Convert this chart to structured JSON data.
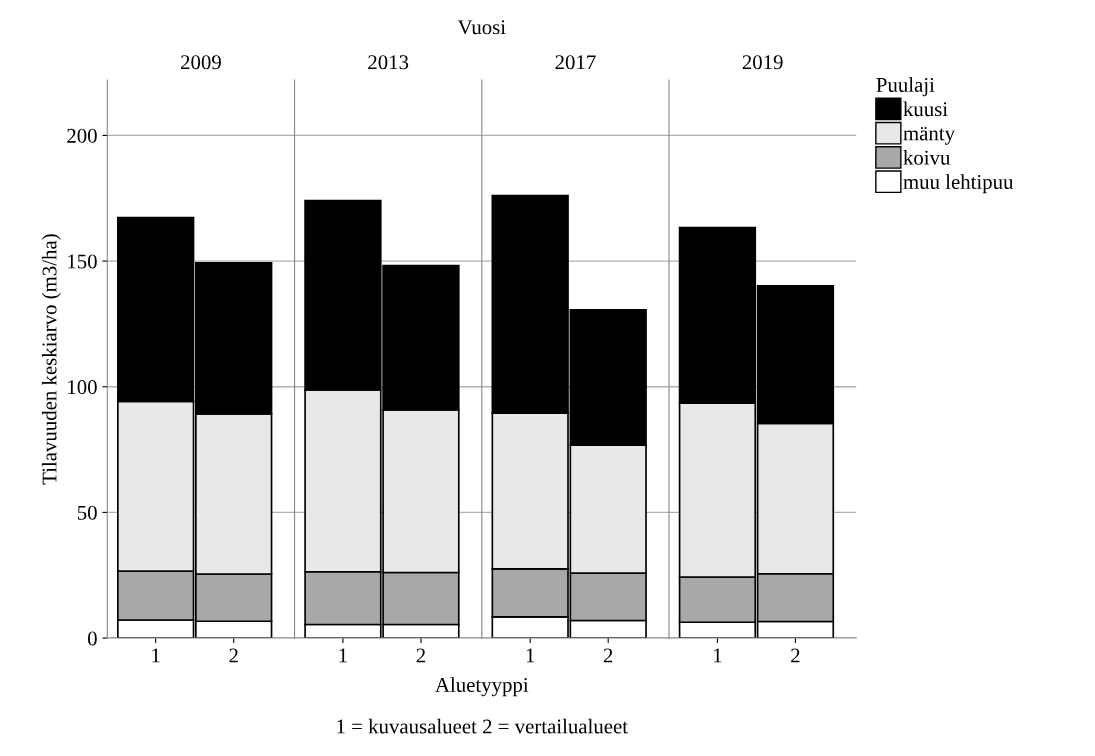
{
  "chart_data": [
    {
      "type": "bar",
      "title": "2009",
      "ylabel": "Tilavuuden keskiarvo (m3/ha)",
      "annotations": [
        "Vuosi",
        "Aluetyyppi",
        "1 = kuvausalueet 2 = vertailualueet"
      ],
      "categories": [
        "1",
        "2"
      ],
      "stacked": true,
      "ylim": [
        0,
        222
      ],
      "yticks": [
        0,
        50,
        100,
        150,
        200
      ],
      "grid": "y",
      "series": [
        {
          "color": "#ffffff",
          "values": [
            7.2,
            6.7
          ]
        },
        {
          "color": "#a8a8a8",
          "values": [
            19.5,
            18.8
          ]
        },
        {
          "color": "#e8e8e8",
          "values": [
            67.5,
            63.7
          ]
        },
        {
          "color": "#000000",
          "values": [
            73.1,
            60.1
          ]
        }
      ]
    },
    {
      "type": "bar",
      "title": "2013",
      "categories": [
        "1",
        "2"
      ],
      "stacked": true,
      "ylim": [
        0,
        222
      ],
      "yticks": [
        0,
        50,
        100,
        150,
        200
      ],
      "grid": "y",
      "tick_labels": "x",
      "series": [
        {
          "color": "#ffffff",
          "values": [
            5.4,
            5.4
          ]
        },
        {
          "color": "#a8a8a8",
          "values": [
            21.0,
            20.7
          ]
        },
        {
          "color": "#e8e8e8",
          "values": [
            72.3,
            64.7
          ]
        },
        {
          "color": "#000000",
          "values": [
            75.4,
            57.4
          ]
        }
      ]
    },
    {
      "type": "bar",
      "title": "2017",
      "categories": [
        "1",
        "2"
      ],
      "stacked": true,
      "ylim": [
        0,
        222
      ],
      "yticks": [
        0,
        50,
        100,
        150,
        200
      ],
      "grid": "y",
      "tick_labels": "x",
      "series": [
        {
          "color": "#ffffff",
          "values": [
            8.4,
            7.0
          ]
        },
        {
          "color": "#a8a8a8",
          "values": [
            19.1,
            18.9
          ]
        },
        {
          "color": "#e8e8e8",
          "values": [
            62.0,
            50.9
          ]
        },
        {
          "color": "#000000",
          "values": [
            86.6,
            53.8
          ]
        }
      ]
    },
    {
      "type": "bar",
      "title": "2019",
      "legend_title": "Puulaji",
      "legend": "right",
      "categories": [
        "1",
        "2"
      ],
      "stacked": true,
      "ylim": [
        0,
        222
      ],
      "yticks": [
        0,
        50,
        100,
        150,
        200
      ],
      "grid": "y",
      "tick_labels": "x",
      "series": [
        {
          "name": "muu lehtipuu",
          "color": "#ffffff",
          "values": [
            6.3,
            6.6
          ]
        },
        {
          "name": "koivu",
          "color": "#a8a8a8",
          "values": [
            18.0,
            19.0
          ]
        },
        {
          "name": "mänty",
          "color": "#e8e8e8",
          "values": [
            69.2,
            59.8
          ]
        },
        {
          "name": "kuusi",
          "color": "#000000",
          "values": [
            69.8,
            54.8
          ]
        }
      ]
    }
  ]
}
